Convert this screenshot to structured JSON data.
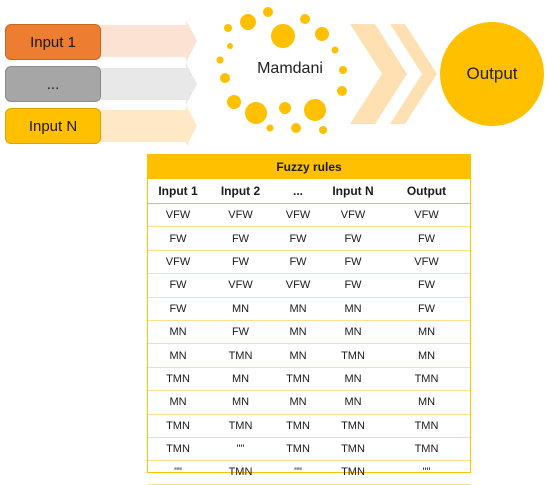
{
  "inputs": [
    {
      "label": "Input 1",
      "color": "#ED7D31"
    },
    {
      "label": "...",
      "color": "#A6A6A6"
    },
    {
      "label": "Input N",
      "color": "#FFC000"
    }
  ],
  "inference": {
    "label": "Mamdani"
  },
  "output": {
    "label": "Output"
  },
  "colors": {
    "accent": "#FFC000",
    "orange": "#ED7D31",
    "gray": "#A6A6A6"
  },
  "rules_table": {
    "title": "Fuzzy rules",
    "headers": [
      "Input 1",
      "Input 2",
      "...",
      "Input N",
      "Output"
    ],
    "rows": [
      [
        "VFW",
        "VFW",
        "VFW",
        "VFW",
        "VFW"
      ],
      [
        "FW",
        "FW",
        "FW",
        "FW",
        "FW"
      ],
      [
        "VFW",
        "FW",
        "FW",
        "FW",
        "VFW"
      ],
      [
        "FW",
        "VFW",
        "VFW",
        "FW",
        "FW"
      ],
      [
        "FW",
        "MN",
        "MN",
        "MN",
        "FW"
      ],
      [
        "MN",
        "FW",
        "MN",
        "MN",
        "MN"
      ],
      [
        "MN",
        "TMN",
        "MN",
        "TMN",
        "MN"
      ],
      [
        "TMN",
        "MN",
        "TMN",
        "MN",
        "TMN"
      ],
      [
        "MN",
        "MN",
        "MN",
        "MN",
        "MN"
      ],
      [
        "TMN",
        "TMN",
        "TMN",
        "TMN",
        "TMN"
      ],
      [
        "TMN",
        "\"\"",
        "TMN",
        "TMN",
        "TMN"
      ],
      [
        "\"\"",
        "TMN",
        "\"\"",
        "TMN",
        "\"\""
      ]
    ]
  }
}
